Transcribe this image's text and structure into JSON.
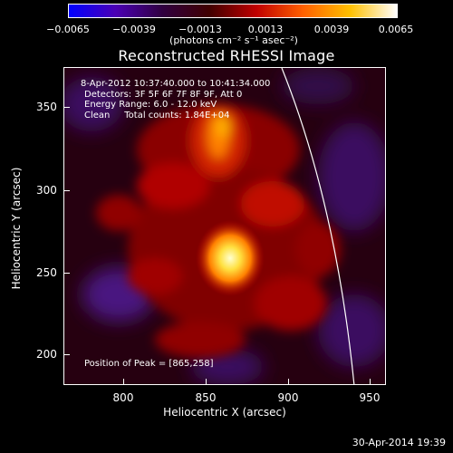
{
  "colorbar": {
    "ticks": [
      "−0.0065",
      "−0.0039",
      "−0.0013",
      "0.0013",
      "0.0039",
      "0.0065"
    ],
    "units": "(photons cm⁻² s⁻¹ asec⁻²)",
    "colors": [
      "#0000ff",
      "#4b00b4",
      "#300040",
      "#400000",
      "#c00000",
      "#ff6000",
      "#ffc000",
      "#ffffff"
    ]
  },
  "title": "Reconstructed RHESSI Image",
  "info": {
    "time_range": "8-Apr-2012 10:37:40.000 to 10:41:34.000",
    "detectors": "Detectors: 3F 5F 6F 7F 8F 9F, Att 0",
    "energy": "Energy Range: 6.0 - 12.0 keV",
    "clean": "Clean     Total counts: 1.84E+04",
    "peak": "Position of Peak = [865,258]"
  },
  "axes": {
    "xlabel": "Heliocentric X (arcsec)",
    "ylabel": "Heliocentric Y (arcsec)",
    "xticks": [
      "800",
      "850",
      "900",
      "950"
    ],
    "yticks": [
      "350",
      "300",
      "250",
      "200"
    ]
  },
  "footer": "30-Apr-2014 19:39"
}
